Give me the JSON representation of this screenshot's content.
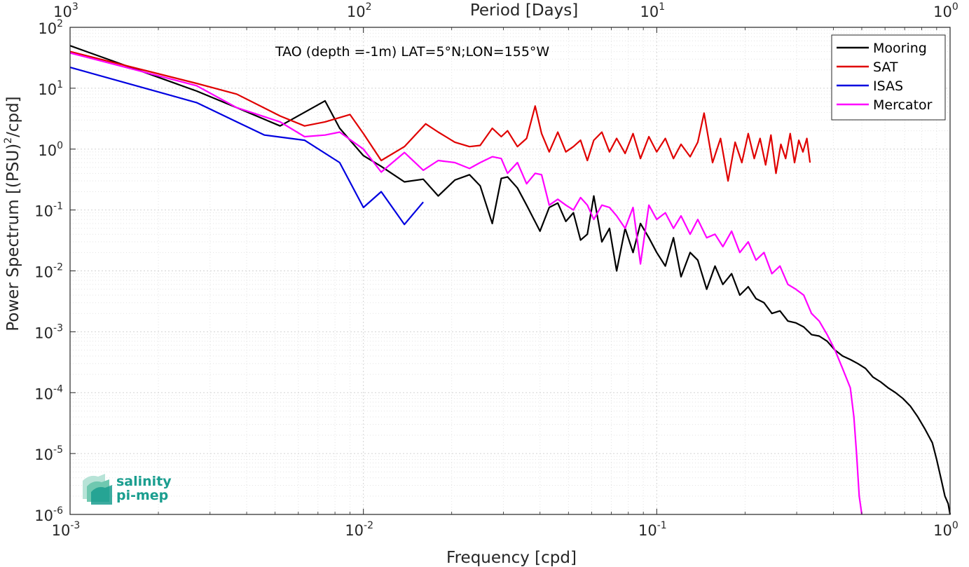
{
  "chart_data": {
    "type": "line",
    "title": "",
    "annotation": "TAO (depth =-1m) LAT=5°N;LON=155°W",
    "xlabel": "Frequency [cpd]",
    "ylabel_prefix": "Power Spectrum [(PSU)",
    "ylabel_sup": "2",
    "ylabel_suffix": "/cpd]",
    "x2label": "Period [Days]",
    "xscale": "log",
    "yscale": "log",
    "xlim": [
      0.001,
      1
    ],
    "ylim": [
      1e-06,
      100
    ],
    "grid": true,
    "legend_position": "top-right",
    "xticks": [
      {
        "base": "10",
        "exp": "-3",
        "value": 0.001
      },
      {
        "base": "10",
        "exp": "-2",
        "value": 0.01
      },
      {
        "base": "10",
        "exp": "-1",
        "value": 0.1
      },
      {
        "base": "10",
        "exp": "0",
        "value": 1
      }
    ],
    "x2ticks": [
      {
        "base": "10",
        "exp": "3",
        "value": 0.001
      },
      {
        "base": "10",
        "exp": "2",
        "value": 0.01
      },
      {
        "base": "10",
        "exp": "1",
        "value": 0.1
      },
      {
        "base": "10",
        "exp": "0",
        "value": 1
      }
    ],
    "yticks": [
      {
        "base": "10",
        "exp": "2",
        "value": 100
      },
      {
        "base": "10",
        "exp": "1",
        "value": 10
      },
      {
        "base": "10",
        "exp": "0",
        "value": 1
      },
      {
        "base": "10",
        "exp": "-1",
        "value": 0.1
      },
      {
        "base": "10",
        "exp": "-2",
        "value": 0.01
      },
      {
        "base": "10",
        "exp": "-3",
        "value": 0.001
      },
      {
        "base": "10",
        "exp": "-4",
        "value": 0.0001
      },
      {
        "base": "10",
        "exp": "-5",
        "value": 1e-05
      },
      {
        "base": "10",
        "exp": "-6",
        "value": 1e-06
      }
    ],
    "series": [
      {
        "name": "Mooring",
        "color": "#000000",
        "x": [
          0.001,
          0.0027,
          0.0037,
          0.0052,
          0.0074,
          0.0083,
          0.01,
          0.0115,
          0.0138,
          0.016,
          0.018,
          0.0205,
          0.023,
          0.025,
          0.0275,
          0.0295,
          0.031,
          0.0335,
          0.036,
          0.04,
          0.043,
          0.046,
          0.049,
          0.052,
          0.055,
          0.058,
          0.061,
          0.065,
          0.069,
          0.073,
          0.078,
          0.083,
          0.088,
          0.094,
          0.1,
          0.107,
          0.114,
          0.121,
          0.13,
          0.138,
          0.148,
          0.158,
          0.168,
          0.18,
          0.192,
          0.205,
          0.218,
          0.232,
          0.247,
          0.263,
          0.28,
          0.298,
          0.317,
          0.337,
          0.358,
          0.381,
          0.405,
          0.43,
          0.457,
          0.485,
          0.515,
          0.546,
          0.58,
          0.615,
          0.652,
          0.691,
          0.732,
          0.776,
          0.822,
          0.87,
          0.9,
          0.93,
          0.96,
          0.985,
          1.0
        ],
        "y": [
          50,
          9,
          4.8,
          2.4,
          6.2,
          2.2,
          0.78,
          0.52,
          0.29,
          0.32,
          0.17,
          0.31,
          0.38,
          0.25,
          0.06,
          0.33,
          0.35,
          0.23,
          0.12,
          0.045,
          0.11,
          0.13,
          0.065,
          0.09,
          0.032,
          0.04,
          0.17,
          0.03,
          0.05,
          0.01,
          0.05,
          0.02,
          0.06,
          0.035,
          0.02,
          0.012,
          0.035,
          0.008,
          0.02,
          0.015,
          0.005,
          0.012,
          0.006,
          0.009,
          0.004,
          0.0055,
          0.0035,
          0.003,
          0.002,
          0.0022,
          0.0015,
          0.0014,
          0.0012,
          0.0009,
          0.00085,
          0.0007,
          0.0005,
          0.0004,
          0.00035,
          0.0003,
          0.00025,
          0.00018,
          0.00015,
          0.00012,
          0.0001,
          8e-05,
          6e-05,
          4e-05,
          2.5e-05,
          1.5e-05,
          8e-06,
          4e-06,
          2e-06,
          1.5e-06,
          1e-06
        ]
      },
      {
        "name": "SAT",
        "color": "#e00000",
        "x": [
          0.001,
          0.0027,
          0.0037,
          0.0052,
          0.0063,
          0.0074,
          0.009,
          0.01,
          0.0115,
          0.0138,
          0.0163,
          0.018,
          0.0205,
          0.023,
          0.025,
          0.0275,
          0.0295,
          0.031,
          0.0335,
          0.036,
          0.0385,
          0.0405,
          0.043,
          0.046,
          0.049,
          0.052,
          0.055,
          0.058,
          0.061,
          0.065,
          0.069,
          0.073,
          0.078,
          0.083,
          0.088,
          0.094,
          0.1,
          0.107,
          0.114,
          0.121,
          0.13,
          0.138,
          0.145,
          0.155,
          0.165,
          0.175,
          0.185,
          0.195,
          0.205,
          0.215,
          0.225,
          0.235,
          0.245,
          0.255,
          0.265,
          0.275,
          0.285,
          0.295,
          0.305,
          0.315,
          0.325,
          0.333
        ],
        "y": [
          40,
          12,
          8,
          3.5,
          2.4,
          2.8,
          3.7,
          1.8,
          0.65,
          1.1,
          2.6,
          1.9,
          1.3,
          1.1,
          1.15,
          2.2,
          1.6,
          2.0,
          1.1,
          1.5,
          5.1,
          1.8,
          0.9,
          1.9,
          0.9,
          1.1,
          1.4,
          0.65,
          1.4,
          1.9,
          0.9,
          1.5,
          0.85,
          1.8,
          0.7,
          1.6,
          0.9,
          1.5,
          0.7,
          1.2,
          0.75,
          1.3,
          3.9,
          0.6,
          1.5,
          0.3,
          1.3,
          0.6,
          1.8,
          0.7,
          1.5,
          0.55,
          1.7,
          0.4,
          1.2,
          0.7,
          1.8,
          0.6,
          1.4,
          0.9,
          1.5,
          0.6
        ]
      },
      {
        "name": "ISAS",
        "color": "#0000e0",
        "x": [
          0.001,
          0.0027,
          0.0037,
          0.0046,
          0.0063,
          0.0083,
          0.01,
          0.0115,
          0.0138,
          0.016
        ],
        "y": [
          22,
          5.8,
          2.8,
          1.7,
          1.4,
          0.6,
          0.11,
          0.2,
          0.058,
          0.135
        ]
      },
      {
        "name": "Mercator",
        "color": "#ff00ff",
        "x": [
          0.001,
          0.0027,
          0.0037,
          0.0052,
          0.0063,
          0.0074,
          0.0083,
          0.01,
          0.0115,
          0.0138,
          0.016,
          0.018,
          0.0205,
          0.023,
          0.025,
          0.0275,
          0.0295,
          0.031,
          0.0335,
          0.036,
          0.0385,
          0.0405,
          0.043,
          0.046,
          0.049,
          0.052,
          0.055,
          0.058,
          0.061,
          0.065,
          0.069,
          0.073,
          0.078,
          0.083,
          0.088,
          0.094,
          0.1,
          0.107,
          0.114,
          0.121,
          0.13,
          0.138,
          0.148,
          0.158,
          0.168,
          0.18,
          0.192,
          0.205,
          0.218,
          0.232,
          0.247,
          0.263,
          0.28,
          0.298,
          0.317,
          0.337,
          0.358,
          0.381,
          0.405,
          0.43,
          0.457,
          0.47,
          0.48,
          0.49,
          0.5
        ],
        "y": [
          38,
          11,
          4.8,
          2.8,
          1.6,
          1.7,
          1.9,
          1.0,
          0.42,
          0.88,
          0.45,
          0.65,
          0.6,
          0.48,
          0.6,
          0.75,
          0.7,
          0.4,
          0.6,
          0.27,
          0.4,
          0.38,
          0.12,
          0.15,
          0.12,
          0.1,
          0.16,
          0.12,
          0.07,
          0.12,
          0.11,
          0.08,
          0.05,
          0.11,
          0.013,
          0.12,
          0.07,
          0.09,
          0.05,
          0.08,
          0.04,
          0.07,
          0.035,
          0.04,
          0.025,
          0.045,
          0.02,
          0.03,
          0.015,
          0.02,
          0.009,
          0.012,
          0.006,
          0.005,
          0.004,
          0.002,
          0.0015,
          0.0009,
          0.0005,
          0.00025,
          0.00012,
          4e-05,
          1e-05,
          2e-06,
          1e-06
        ]
      }
    ]
  },
  "logo": {
    "line1": "salinity",
    "line2": "pi-mep",
    "color": "#1a9e8f"
  }
}
